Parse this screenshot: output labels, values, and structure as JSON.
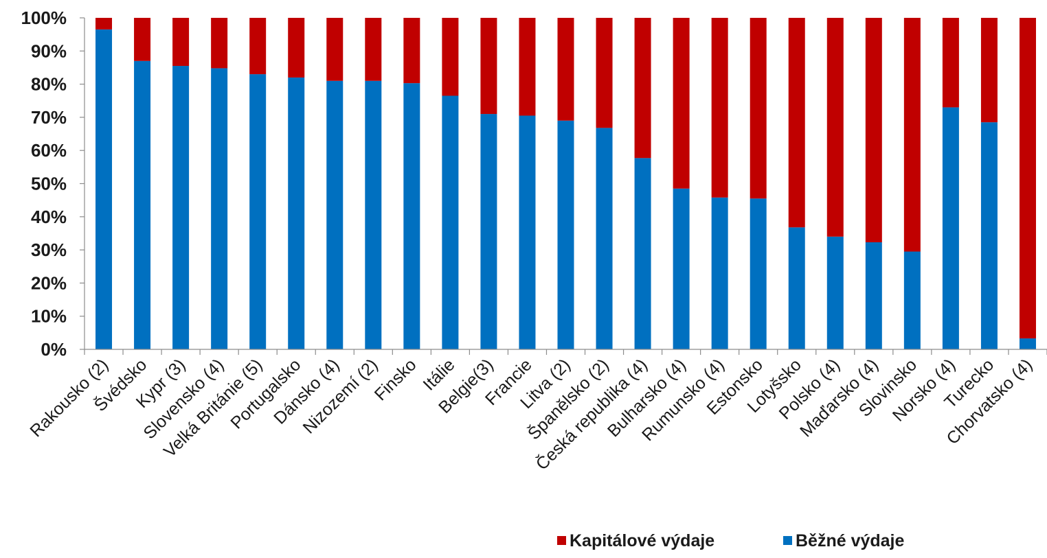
{
  "chart_data": {
    "type": "bar",
    "stacked": true,
    "percent": true,
    "categories": [
      "Rakousko (2)",
      "Švédsko",
      "Kypr (3)",
      "Slovensko (4)",
      "Velká Británie (5)",
      "Portugalsko",
      "Dánsko (4)",
      "Nizozemí (2)",
      "Finsko",
      "Itálie",
      "Belgie(3)",
      "Francie",
      "Litva (2)",
      "Španělsko (2)",
      "Česká republika (4)",
      "Bulharsko (4)",
      "Rumunsko (4)",
      "Estonsko",
      "Lotyšsko",
      "Polsko (4)",
      "Maďarsko (4)",
      "Slovinsko",
      "Norsko (4)",
      "Turecko",
      "Chorvatsko (4)"
    ],
    "series": [
      {
        "name": "Běžné výdaje",
        "color": "#0070c0",
        "values": [
          96.5,
          87,
          85.5,
          84.8,
          83,
          82,
          81,
          81,
          80.3,
          76.5,
          71,
          70.5,
          69,
          66.8,
          57.7,
          48.5,
          45.8,
          45.5,
          36.8,
          34,
          32.3,
          29.5,
          73,
          68.5,
          3.3
        ]
      },
      {
        "name": "Kapitálové výdaje",
        "color": "#c00000",
        "values": [
          3.5,
          13,
          14.5,
          15.2,
          17,
          18,
          19,
          19,
          19.7,
          23.5,
          29,
          29.5,
          31,
          33.2,
          42.3,
          51.5,
          54.2,
          54.5,
          63.2,
          66,
          67.7,
          70.5,
          27,
          31.5,
          96.7
        ]
      }
    ],
    "yticks": [
      "0%",
      "10%",
      "20%",
      "30%",
      "40%",
      "50%",
      "60%",
      "70%",
      "80%",
      "90%",
      "100%"
    ],
    "ylim": [
      0,
      100
    ],
    "grid": false,
    "legend": {
      "position": "bottom-right",
      "entries": [
        {
          "label": "Kapitálové výdaje",
          "color": "#c00000"
        },
        {
          "label": "Běžné výdaje",
          "color": "#0070c0"
        }
      ]
    }
  }
}
